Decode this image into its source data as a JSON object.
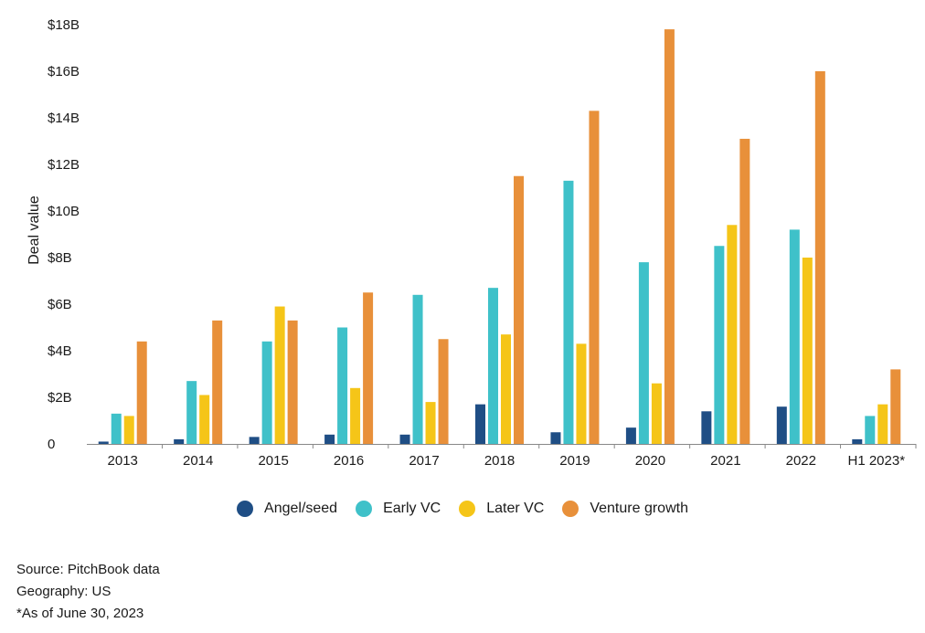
{
  "chart_data": {
    "type": "bar",
    "ylabel": "Deal value",
    "xlabel": "",
    "ylim": [
      0,
      18
    ],
    "yticks": [
      0,
      2,
      4,
      6,
      8,
      10,
      12,
      14,
      16,
      18
    ],
    "ytick_labels": [
      "0",
      "$2B",
      "$4B",
      "$6B",
      "$8B",
      "$10B",
      "$12B",
      "$14B",
      "$16B",
      "$18B"
    ],
    "categories": [
      "2013",
      "2014",
      "2015",
      "2016",
      "2017",
      "2018",
      "2019",
      "2020",
      "2021",
      "2022",
      "H1 2023*"
    ],
    "series": [
      {
        "name": "Angel/seed",
        "color": "#1f4e85",
        "values": [
          0.1,
          0.2,
          0.3,
          0.4,
          0.4,
          1.7,
          0.5,
          0.7,
          1.4,
          1.6,
          0.2
        ]
      },
      {
        "name": "Early VC",
        "color": "#3fc1c9",
        "values": [
          1.3,
          2.7,
          4.4,
          5.0,
          6.4,
          6.7,
          11.3,
          7.8,
          8.5,
          9.2,
          1.2
        ]
      },
      {
        "name": "Later VC",
        "color": "#f5c518",
        "values": [
          1.2,
          2.1,
          5.9,
          2.4,
          1.8,
          4.7,
          4.3,
          2.6,
          9.4,
          8.0,
          1.7
        ]
      },
      {
        "name": "Venture growth",
        "color": "#e8903a",
        "values": [
          4.4,
          5.3,
          5.3,
          6.5,
          4.5,
          11.5,
          14.3,
          17.8,
          13.1,
          16.0,
          3.2
        ]
      }
    ],
    "legend_position": "bottom",
    "grid": false
  },
  "notes": {
    "source": "Source: PitchBook data",
    "geography": "Geography: US",
    "asof": "*As of June 30, 2023"
  }
}
